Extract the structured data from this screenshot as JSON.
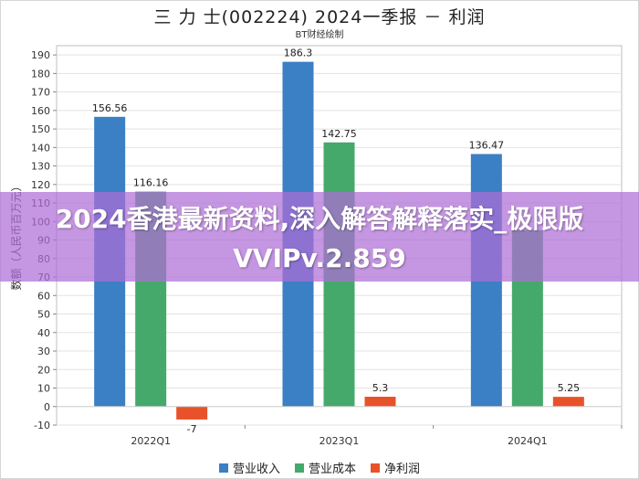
{
  "page": {
    "title": "三 力 士(002224) 2024一季报 － 利润",
    "subtitle": "BT财经绘制",
    "banner": "2024香港最新资料,深入解答解释落实_极限版VVIPv.2.859"
  },
  "chart_data": {
    "type": "bar",
    "title": "三 力 士(002224) 2024一季报 － 利润",
    "subtitle": "BT财经绘制",
    "xlabel": "",
    "ylabel": "数额（人民币百万元）",
    "ylim": [
      -10,
      195
    ],
    "yticks": [
      -10,
      0,
      10,
      20,
      30,
      40,
      50,
      60,
      70,
      80,
      90,
      100,
      110,
      120,
      130,
      140,
      150,
      160,
      170,
      180,
      190
    ],
    "grid": true,
    "legend_position": "bottom",
    "categories": [
      "2022Q1",
      "2023Q1",
      "2024Q1"
    ],
    "series": [
      {
        "name": "营业收入",
        "color": "#3b7fc4",
        "values": [
          156.56,
          186.3,
          136.47
        ],
        "labels": [
          "156.56",
          "186.3",
          "136.47"
        ]
      },
      {
        "name": "营业成本",
        "color": "#45a96c",
        "values": [
          116.16,
          142.75,
          95.3
        ],
        "labels": [
          "116.16",
          "142.75",
          ""
        ]
      },
      {
        "name": "净利润",
        "color": "#e8522a",
        "values": [
          -7,
          5.3,
          5.25
        ],
        "labels": [
          "-7",
          "5.3",
          "5.25"
        ]
      }
    ]
  }
}
